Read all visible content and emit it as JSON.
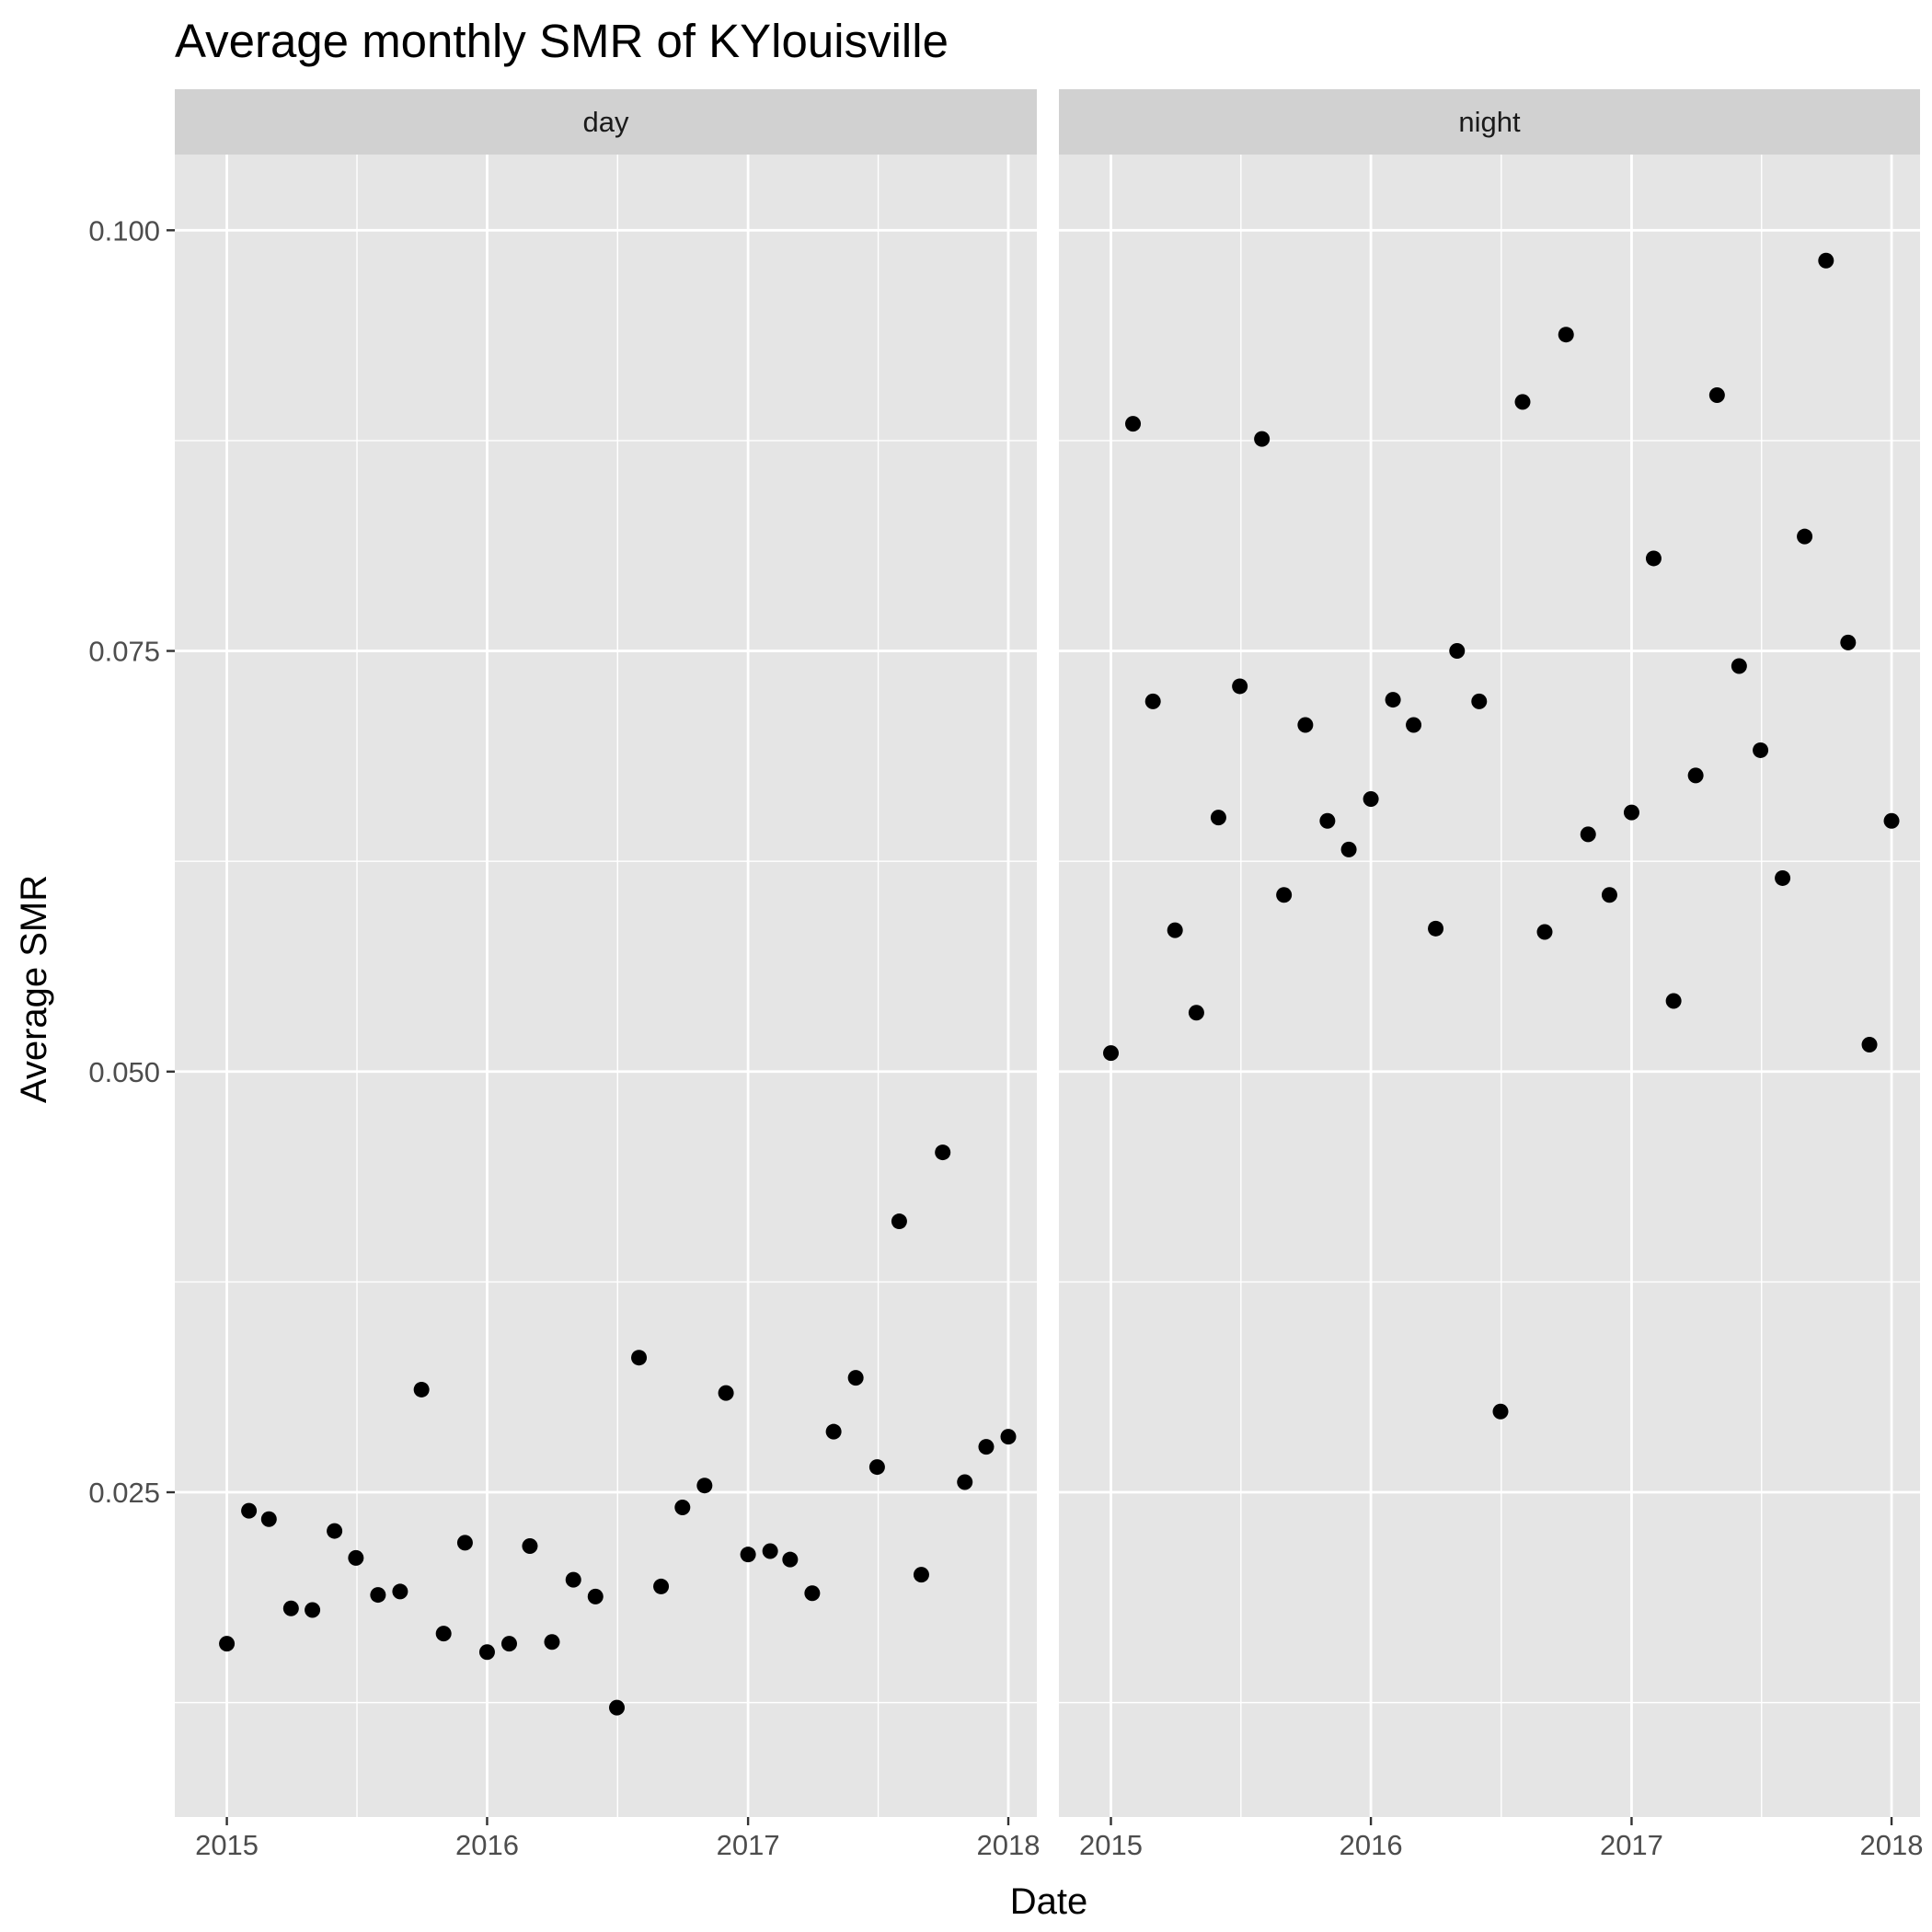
{
  "chart_data": {
    "type": "scatter",
    "title": "Average monthly SMR of KYlouisville",
    "xlabel": "Date",
    "ylabel": "Average SMR",
    "x_ticks": [
      "2015",
      "2016",
      "2017",
      "2018"
    ],
    "y_ticks": [
      "0.025",
      "0.050",
      "0.075",
      "0.100"
    ],
    "xlim": [
      "2014-10-20",
      "2018-02-10"
    ],
    "ylim": [
      0.0057,
      0.1045
    ],
    "grid": true,
    "facets": [
      {
        "label": "day",
        "points": [
          {
            "x": "2015-01",
            "y": 0.016
          },
          {
            "x": "2015-02",
            "y": 0.0239
          },
          {
            "x": "2015-03",
            "y": 0.0234
          },
          {
            "x": "2015-04",
            "y": 0.0181
          },
          {
            "x": "2015-05",
            "y": 0.018
          },
          {
            "x": "2015-06",
            "y": 0.0227
          },
          {
            "x": "2015-07",
            "y": 0.0211
          },
          {
            "x": "2015-08",
            "y": 0.0189
          },
          {
            "x": "2015-09",
            "y": 0.0191
          },
          {
            "x": "2015-10",
            "y": 0.0311
          },
          {
            "x": "2015-11",
            "y": 0.0166
          },
          {
            "x": "2015-12",
            "y": 0.022
          },
          {
            "x": "2016-01",
            "y": 0.0155
          },
          {
            "x": "2016-02",
            "y": 0.016
          },
          {
            "x": "2016-03",
            "y": 0.0218
          },
          {
            "x": "2016-04",
            "y": 0.0161
          },
          {
            "x": "2016-05",
            "y": 0.0198
          },
          {
            "x": "2016-06",
            "y": 0.0188
          },
          {
            "x": "2016-07",
            "y": 0.0122
          },
          {
            "x": "2016-08",
            "y": 0.033
          },
          {
            "x": "2016-09",
            "y": 0.0194
          },
          {
            "x": "2016-10",
            "y": 0.0241
          },
          {
            "x": "2016-11",
            "y": 0.0254
          },
          {
            "x": "2016-12",
            "y": 0.0309
          },
          {
            "x": "2017-01",
            "y": 0.0213
          },
          {
            "x": "2017-02",
            "y": 0.0215
          },
          {
            "x": "2017-03",
            "y": 0.021
          },
          {
            "x": "2017-04",
            "y": 0.019
          },
          {
            "x": "2017-05",
            "y": 0.0286
          },
          {
            "x": "2017-06",
            "y": 0.0318
          },
          {
            "x": "2017-07",
            "y": 0.0265
          },
          {
            "x": "2017-08",
            "y": 0.0411
          },
          {
            "x": "2017-09",
            "y": 0.0201
          },
          {
            "x": "2017-10",
            "y": 0.0452
          },
          {
            "x": "2017-11",
            "y": 0.0256
          },
          {
            "x": "2017-12",
            "y": 0.0277
          },
          {
            "x": "2018-01",
            "y": 0.0283
          }
        ]
      },
      {
        "label": "night",
        "points": [
          {
            "x": "2015-01",
            "y": 0.0511
          },
          {
            "x": "2015-02",
            "y": 0.0885
          },
          {
            "x": "2015-03",
            "y": 0.072
          },
          {
            "x": "2015-04",
            "y": 0.0584
          },
          {
            "x": "2015-05",
            "y": 0.0535
          },
          {
            "x": "2015-06",
            "y": 0.0651
          },
          {
            "x": "2015-07",
            "y": 0.0729
          },
          {
            "x": "2015-08",
            "y": 0.0876
          },
          {
            "x": "2015-09",
            "y": 0.0605
          },
          {
            "x": "2015-10",
            "y": 0.0706
          },
          {
            "x": "2015-11",
            "y": 0.0649
          },
          {
            "x": "2015-12",
            "y": 0.0632
          },
          {
            "x": "2016-01",
            "y": 0.0662
          },
          {
            "x": "2016-02",
            "y": 0.0721
          },
          {
            "x": "2016-03",
            "y": 0.0706
          },
          {
            "x": "2016-04",
            "y": 0.0585
          },
          {
            "x": "2016-05",
            "y": 0.075
          },
          {
            "x": "2016-06",
            "y": 0.072
          },
          {
            "x": "2016-07",
            "y": 0.0298
          },
          {
            "x": "2016-08",
            "y": 0.0898
          },
          {
            "x": "2016-09",
            "y": 0.0583
          },
          {
            "x": "2016-10",
            "y": 0.0938
          },
          {
            "x": "2016-11",
            "y": 0.0641
          },
          {
            "x": "2016-12",
            "y": 0.0605
          },
          {
            "x": "2017-01",
            "y": 0.0654
          },
          {
            "x": "2017-02",
            "y": 0.0805
          },
          {
            "x": "2017-03",
            "y": 0.0542
          },
          {
            "x": "2017-04",
            "y": 0.0676
          },
          {
            "x": "2017-05",
            "y": 0.0902
          },
          {
            "x": "2017-06",
            "y": 0.0741
          },
          {
            "x": "2017-07",
            "y": 0.0691
          },
          {
            "x": "2017-08",
            "y": 0.0615
          },
          {
            "x": "2017-09",
            "y": 0.0818
          },
          {
            "x": "2017-10",
            "y": 0.0982
          },
          {
            "x": "2017-11",
            "y": 0.0755
          },
          {
            "x": "2017-12",
            "y": 0.0516
          },
          {
            "x": "2018-01",
            "y": 0.0649
          }
        ]
      }
    ],
    "colors": {
      "panel_background": "#e5e5e5",
      "grid_line": "#ffffff",
      "strip_background": "#d1d1d1",
      "point": "#000000"
    }
  }
}
